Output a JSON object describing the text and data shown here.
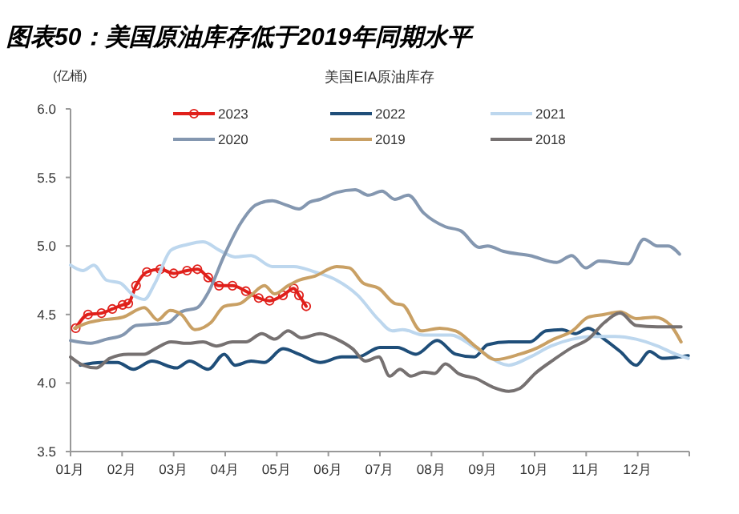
{
  "chart_data": {
    "type": "line",
    "title": "图表50：美国原油库存低于2019年同期水平",
    "subtitle": "美国EIA原油库存",
    "ylabel": "(亿桶)",
    "xlim": [
      1,
      13
    ],
    "xticks": [
      {
        "value": 1,
        "label": "01月"
      },
      {
        "value": 2,
        "label": "02月"
      },
      {
        "value": 3,
        "label": "03月"
      },
      {
        "value": 4,
        "label": "04月"
      },
      {
        "value": 5,
        "label": "05月"
      },
      {
        "value": 6,
        "label": "06月"
      },
      {
        "value": 7,
        "label": "07月"
      },
      {
        "value": 8,
        "label": "08月"
      },
      {
        "value": 9,
        "label": "09月"
      },
      {
        "value": 10,
        "label": "10月"
      },
      {
        "value": 11,
        "label": "11月"
      },
      {
        "value": 12,
        "label": "12月"
      },
      {
        "value": 13,
        "label": null
      }
    ],
    "ylim": [
      3.5,
      6.0
    ],
    "yticks": [
      {
        "value": 3.5,
        "label": "3.5"
      },
      {
        "value": 4.0,
        "label": "4.0"
      },
      {
        "value": 4.5,
        "label": "4.5"
      },
      {
        "value": 5.0,
        "label": "5.0"
      },
      {
        "value": 5.5,
        "label": "5.5"
      },
      {
        "value": 6.0,
        "label": "6.0"
      }
    ],
    "grid": false,
    "legend": "top",
    "marker": "none",
    "line_style": "solid",
    "series": [
      {
        "name": "2023",
        "color": "#e0201b",
        "marker": "circle",
        "x": [
          1.1,
          1.34,
          1.6,
          1.81,
          2.01,
          2.12,
          2.27,
          2.48,
          2.74,
          3.0,
          3.26,
          3.46,
          3.67,
          3.88,
          4.14,
          4.4,
          4.65,
          4.86,
          5.12,
          5.33,
          5.43,
          5.57
        ],
        "values": [
          4.4,
          4.5,
          4.51,
          4.54,
          4.57,
          4.58,
          4.71,
          4.81,
          4.83,
          4.8,
          4.82,
          4.83,
          4.77,
          4.71,
          4.71,
          4.67,
          4.62,
          4.6,
          4.64,
          4.69,
          4.64,
          4.56
        ]
      },
      {
        "name": "2022",
        "color": "#1f4e79",
        "x": [
          1.19,
          1.6,
          1.91,
          2.22,
          2.58,
          3.05,
          3.31,
          3.67,
          3.98,
          4.19,
          4.5,
          4.76,
          5.12,
          5.43,
          5.84,
          6.26,
          6.57,
          7.0,
          7.34,
          7.7,
          8.11,
          8.47,
          8.83,
          9.09,
          9.5,
          9.91,
          10.22,
          10.53,
          10.79,
          11.04,
          11.35,
          11.66,
          11.97,
          12.23,
          12.48,
          12.79,
          12.98
        ],
        "values": [
          4.13,
          4.15,
          4.15,
          4.1,
          4.16,
          4.11,
          4.16,
          4.1,
          4.21,
          4.13,
          4.16,
          4.15,
          4.25,
          4.21,
          4.15,
          4.19,
          4.19,
          4.26,
          4.26,
          4.21,
          4.31,
          4.21,
          4.19,
          4.28,
          4.3,
          4.3,
          4.38,
          4.39,
          4.36,
          4.4,
          4.32,
          4.23,
          4.13,
          4.23,
          4.18,
          4.19,
          4.2
        ]
      },
      {
        "name": "2021",
        "color": "#bdd7ee",
        "x": [
          1,
          1.24,
          1.45,
          1.7,
          1.96,
          2.22,
          2.43,
          2.64,
          2.95,
          3.26,
          3.57,
          3.88,
          4.19,
          4.5,
          4.91,
          5.33,
          5.74,
          6.16,
          6.57,
          6.98,
          7.24,
          7.44,
          7.85,
          8.37,
          8.88,
          9.5,
          9.91,
          10.32,
          10.73,
          11.15,
          11.56,
          11.97,
          12.38,
          12.74,
          12.98
        ],
        "values": [
          4.86,
          4.82,
          4.86,
          4.75,
          4.73,
          4.64,
          4.61,
          4.73,
          4.97,
          5.01,
          5.03,
          4.97,
          4.92,
          4.93,
          4.85,
          4.85,
          4.81,
          4.75,
          4.64,
          4.46,
          4.38,
          4.39,
          4.35,
          4.35,
          4.25,
          4.13,
          4.19,
          4.27,
          4.32,
          4.34,
          4.34,
          4.32,
          4.27,
          4.21,
          4.18
        ]
      },
      {
        "name": "2020",
        "color": "#8497b0",
        "x": [
          1,
          1.39,
          1.7,
          2.01,
          2.27,
          2.64,
          2.89,
          3.15,
          3.46,
          3.67,
          3.98,
          4.29,
          4.6,
          4.91,
          5.17,
          5.43,
          5.64,
          5.84,
          6.16,
          6.52,
          6.78,
          7.04,
          7.29,
          7.55,
          7.85,
          8.27,
          8.57,
          8.93,
          9.09,
          9.4,
          9.91,
          10.43,
          10.72,
          10.99,
          11.25,
          11.81,
          12.12,
          12.38,
          12.59,
          12.81
        ],
        "values": [
          4.31,
          4.29,
          4.32,
          4.35,
          4.42,
          4.43,
          4.44,
          4.52,
          4.55,
          4.66,
          4.93,
          5.16,
          5.3,
          5.33,
          5.3,
          5.27,
          5.32,
          5.34,
          5.39,
          5.41,
          5.37,
          5.4,
          5.34,
          5.37,
          5.24,
          5.14,
          5.11,
          4.99,
          5.0,
          4.96,
          4.93,
          4.88,
          4.93,
          4.84,
          4.89,
          4.87,
          5.05,
          5.0,
          5.0,
          4.94
        ]
      },
      {
        "name": "2019",
        "color": "#c9a064",
        "x": [
          1.08,
          1.34,
          1.6,
          2.01,
          2.43,
          2.69,
          2.93,
          3.15,
          3.41,
          3.72,
          3.98,
          4.29,
          4.5,
          4.76,
          4.96,
          5.22,
          5.43,
          5.74,
          6.16,
          6.41,
          6.67,
          6.98,
          7.29,
          7.44,
          7.8,
          8.16,
          8.47,
          8.88,
          9.24,
          9.71,
          10.01,
          10.37,
          10.73,
          11.04,
          11.35,
          11.66,
          11.97,
          12.33,
          12.64,
          12.84
        ],
        "values": [
          4.4,
          4.44,
          4.46,
          4.48,
          4.55,
          4.46,
          4.53,
          4.5,
          4.39,
          4.44,
          4.56,
          4.58,
          4.64,
          4.71,
          4.65,
          4.71,
          4.75,
          4.78,
          4.85,
          4.84,
          4.73,
          4.69,
          4.58,
          4.57,
          4.38,
          4.4,
          4.38,
          4.26,
          4.17,
          4.21,
          4.25,
          4.32,
          4.38,
          4.48,
          4.5,
          4.52,
          4.47,
          4.48,
          4.42,
          4.3
        ]
      },
      {
        "name": "2018",
        "color": "#767171",
        "x": [
          1,
          1.24,
          1.5,
          1.76,
          2.12,
          2.43,
          2.64,
          2.95,
          3.26,
          3.57,
          3.83,
          4.14,
          4.4,
          4.71,
          4.96,
          5.22,
          5.48,
          5.84,
          6.16,
          6.47,
          6.72,
          6.98,
          7.19,
          7.39,
          7.6,
          7.85,
          8.06,
          8.27,
          8.52,
          8.88,
          9.19,
          9.5,
          9.71,
          10.01,
          10.37,
          10.73,
          11.04,
          11.35,
          11.66,
          11.97,
          12.38,
          12.84
        ],
        "values": [
          4.19,
          4.13,
          4.11,
          4.18,
          4.21,
          4.21,
          4.25,
          4.3,
          4.29,
          4.3,
          4.27,
          4.3,
          4.3,
          4.36,
          4.32,
          4.38,
          4.33,
          4.36,
          4.32,
          4.25,
          4.16,
          4.19,
          4.05,
          4.1,
          4.05,
          4.08,
          4.07,
          4.14,
          4.07,
          4.03,
          3.97,
          3.94,
          3.96,
          4.07,
          4.17,
          4.26,
          4.32,
          4.44,
          4.51,
          4.42,
          4.41,
          4.41
        ]
      }
    ]
  }
}
